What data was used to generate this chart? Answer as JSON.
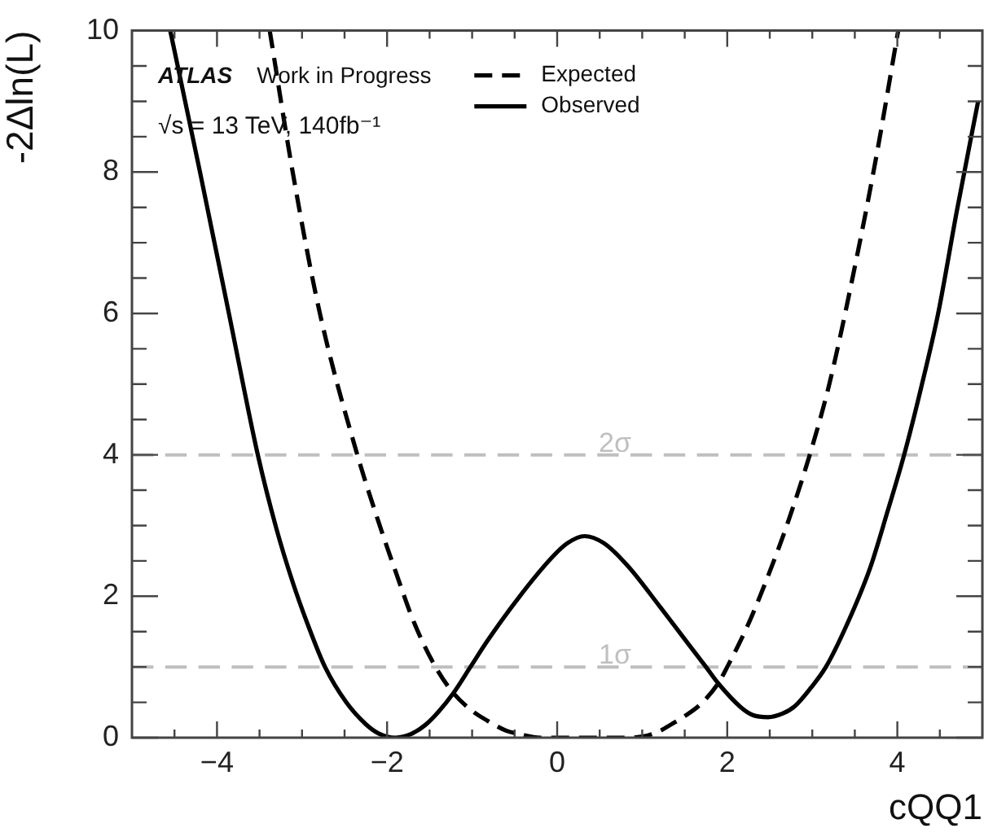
{
  "chart_data": {
    "type": "line",
    "xlabel": "cQQ1",
    "ylabel": "-2Δln(L)",
    "annotations": [
      "ATLAS",
      "Work in Progress",
      "√s = 13 TeV, 140fb⁻¹"
    ],
    "series": [
      {
        "name": "Expected",
        "color": "#000000",
        "line_style": "dashed",
        "x": [
          -3.38,
          -3.11,
          -2.79,
          -2.35,
          -2.1,
          -1.9,
          -1.68,
          -1.43,
          -1.22,
          -1.0,
          -0.82,
          -0.6,
          -0.44,
          -0.2,
          0.3,
          0.8,
          1.02,
          1.2,
          1.33,
          1.52,
          1.71,
          1.9,
          2.0,
          2.16,
          2.3,
          2.5,
          2.7,
          2.97,
          3.2,
          3.49,
          3.75,
          4.01
        ],
        "values": [
          10,
          8,
          6,
          4,
          3.05,
          2.35,
          1.62,
          1.0,
          0.63,
          0.38,
          0.24,
          0.1,
          0.05,
          0,
          0,
          0,
          0.02,
          0.09,
          0.18,
          0.32,
          0.5,
          0.78,
          1.0,
          1.38,
          1.75,
          2.35,
          3.0,
          4,
          5.0,
          6.6,
          8.2,
          10
        ]
      },
      {
        "name": "Observed",
        "color": "#000000",
        "line_style": "solid",
        "x": [
          -4.55,
          -4.2,
          -3.86,
          -3.52,
          -3.3,
          -3.11,
          -2.92,
          -2.73,
          -2.48,
          -2.25,
          -2.1,
          -1.9,
          -1.72,
          -1.55,
          -1.4,
          -1.22,
          -1.02,
          -0.82,
          -0.44,
          -0.06,
          0.12,
          0.32,
          0.55,
          0.83,
          1.21,
          1.59,
          1.75,
          1.9,
          2.16,
          2.3,
          2.48,
          2.65,
          2.79,
          2.98,
          3.16,
          3.4,
          3.68,
          3.88,
          4.08,
          4.28,
          4.48,
          4.7,
          4.95
        ],
        "values": [
          10,
          8,
          6,
          4,
          2.95,
          2.2,
          1.56,
          1.0,
          0.5,
          0.19,
          0.06,
          0,
          0.05,
          0.18,
          0.36,
          0.63,
          1.0,
          1.37,
          2.0,
          2.55,
          2.75,
          2.85,
          2.75,
          2.43,
          1.85,
          1.25,
          1.0,
          0.76,
          0.43,
          0.32,
          0.29,
          0.34,
          0.44,
          0.7,
          1.0,
          1.58,
          2.4,
          3.18,
          4,
          4.95,
          6.0,
          7.45,
          9.0
        ]
      }
    ],
    "xlim": [
      -5,
      5
    ],
    "ylim": [
      0,
      10
    ],
    "xticks": [
      {
        "value": -4.5,
        "label": null
      },
      {
        "value": -4,
        "label": "−4"
      },
      {
        "value": -3.5,
        "label": null
      },
      {
        "value": -3,
        "label": null
      },
      {
        "value": -2.5,
        "label": null
      },
      {
        "value": -2,
        "label": "−2"
      },
      {
        "value": -1.5,
        "label": null
      },
      {
        "value": -1,
        "label": null
      },
      {
        "value": -0.5,
        "label": null
      },
      0,
      {
        "value": 0.5,
        "label": null
      },
      {
        "value": 1,
        "label": null
      },
      {
        "value": 1.5,
        "label": null
      },
      2,
      {
        "value": 2.5,
        "label": null
      },
      {
        "value": 3,
        "label": null
      },
      {
        "value": 3.5,
        "label": null
      },
      4,
      {
        "value": 4.5,
        "label": null
      }
    ],
    "yticks": [
      0,
      {
        "value": 0.5,
        "label": null
      },
      {
        "value": 1,
        "label": null
      },
      {
        "value": 1.5,
        "label": null
      },
      2,
      {
        "value": 2.5,
        "label": null
      },
      {
        "value": 3,
        "label": null
      },
      {
        "value": 3.5,
        "label": null
      },
      4,
      {
        "value": 4.5,
        "label": null
      },
      {
        "value": 5,
        "label": null
      },
      {
        "value": 5.5,
        "label": null
      },
      6,
      {
        "value": 6.5,
        "label": null
      },
      {
        "value": 7,
        "label": null
      },
      {
        "value": 7.5,
        "label": null
      },
      8,
      {
        "value": 8.5,
        "label": null
      },
      {
        "value": 9,
        "label": null
      },
      {
        "value": 9.5,
        "label": null
      },
      10
    ],
    "ref_lines": [
      {
        "axis": "y",
        "value": 4,
        "label": "2σ",
        "color": "#bfbfbf",
        "line_style": "dashed"
      },
      {
        "axis": "y",
        "value": 1,
        "label": "1σ",
        "color": "#bfbfbf",
        "line_style": "dashed"
      }
    ],
    "legend": "top",
    "grid": false
  }
}
